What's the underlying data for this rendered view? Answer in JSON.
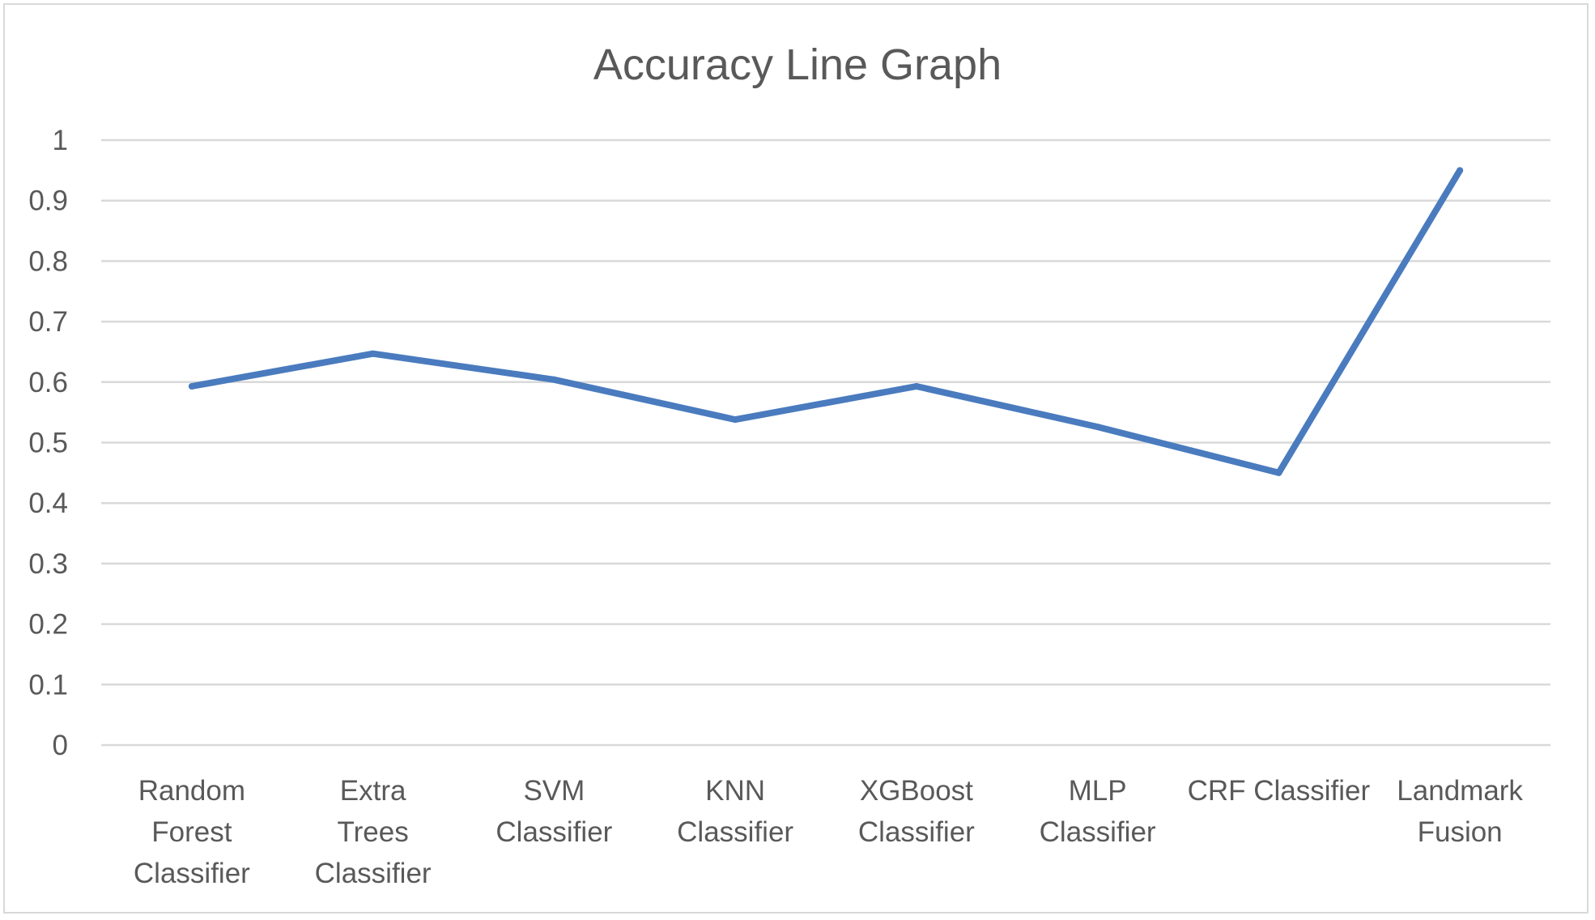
{
  "chart_data": {
    "type": "line",
    "title": "Accuracy Line Graph",
    "xlabel": "",
    "ylabel": "",
    "ylim": [
      0,
      1
    ],
    "y_ticks": [
      "0",
      "0.1",
      "0.2",
      "0.3",
      "0.4",
      "0.5",
      "0.6",
      "0.7",
      "0.8",
      "0.9",
      "1"
    ],
    "categories": [
      "Random Forest Classifier",
      "Extra Trees Classifier",
      "SVM Classifier",
      "KNN Classifier",
      "XGBoost Classifier",
      "MLP Classifier",
      "CRF Classifier",
      "Landmark Fusion"
    ],
    "series": [
      {
        "values": [
          0.593,
          0.647,
          0.604,
          0.538,
          0.593,
          0.526,
          0.45,
          0.95
        ]
      }
    ],
    "grid": true,
    "legend": "none",
    "colors": {
      "series": "#4a7bbe",
      "grid": "#d9d9d9",
      "text": "#595959"
    }
  }
}
